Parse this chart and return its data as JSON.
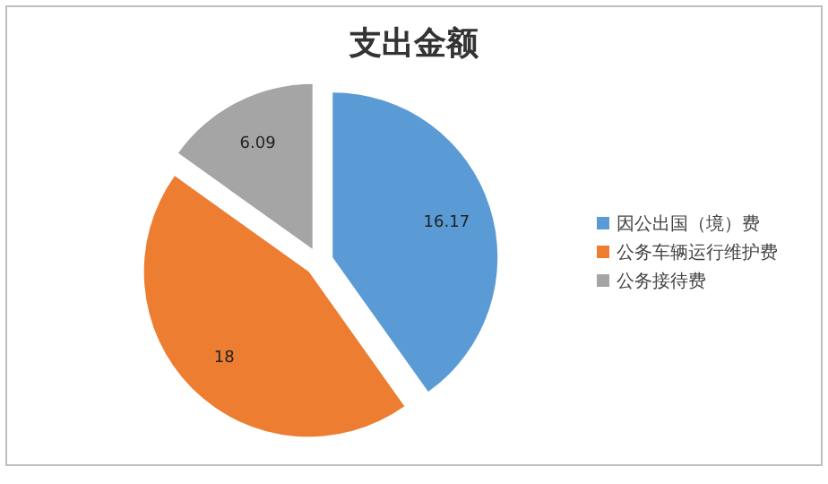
{
  "chart_data": {
    "type": "pie",
    "title": "支出金额",
    "categories": [
      "因公出国（境）费",
      "公务车辆运行维护费",
      "公务接待费"
    ],
    "values": [
      16.17,
      18,
      6.09
    ],
    "colors": [
      "#5b9bd5",
      "#ed7d31",
      "#a5a5a5"
    ],
    "data_labels": true,
    "legend": "right"
  }
}
